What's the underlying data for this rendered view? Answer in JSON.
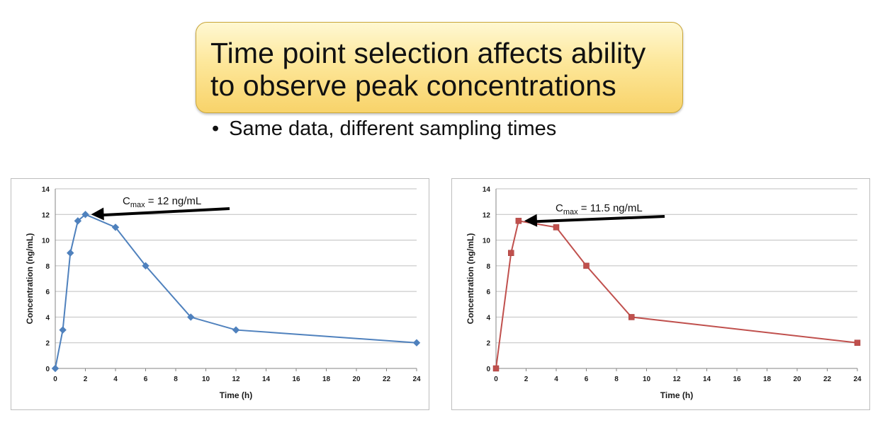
{
  "slide": {
    "title": "Time point selection affects ability to observe peak concentrations",
    "bullet": "Same data, different sampling times"
  },
  "chart_data": [
    {
      "type": "line",
      "xlabel": "Time (h)",
      "ylabel": "Concentration (ng/mL)",
      "xlim": [
        0,
        24
      ],
      "ylim": [
        0,
        14
      ],
      "xticks": [
        0,
        2,
        4,
        6,
        8,
        10,
        12,
        14,
        16,
        18,
        20,
        22,
        24
      ],
      "yticks": [
        0,
        2,
        4,
        6,
        8,
        10,
        12,
        14
      ],
      "grid": "horizontal",
      "series": [
        {
          "color": "#4f81bd",
          "marker": "diamond",
          "x": [
            0,
            0.5,
            1,
            1.5,
            2,
            4,
            6,
            9,
            12,
            24
          ],
          "y": [
            0,
            3,
            9,
            11.5,
            12,
            11,
            8,
            4,
            3,
            2
          ]
        }
      ],
      "annotation": {
        "text_main": "C",
        "text_sub": "max",
        "text_rest": " = 12 ng/mL",
        "arrow_to": [
          2,
          12
        ],
        "arrow_color": "#000000"
      }
    },
    {
      "type": "line",
      "xlabel": "Time (h)",
      "ylabel": "Concentration (ng/mL)",
      "xlim": [
        0,
        24
      ],
      "ylim": [
        0,
        14
      ],
      "xticks": [
        0,
        2,
        4,
        6,
        8,
        10,
        12,
        14,
        16,
        18,
        20,
        22,
        24
      ],
      "yticks": [
        0,
        2,
        4,
        6,
        8,
        10,
        12,
        14
      ],
      "grid": "horizontal",
      "series": [
        {
          "color": "#c0504d",
          "marker": "square",
          "x": [
            0,
            1,
            1.5,
            4,
            6,
            9,
            24
          ],
          "y": [
            0,
            9,
            11.5,
            11,
            8,
            4,
            2
          ]
        }
      ],
      "annotation": {
        "text_main": "C",
        "text_sub": "max",
        "text_rest": " = 11.5 ng/mL",
        "arrow_to": [
          1.5,
          11.5
        ],
        "arrow_color": "#000000"
      }
    }
  ]
}
